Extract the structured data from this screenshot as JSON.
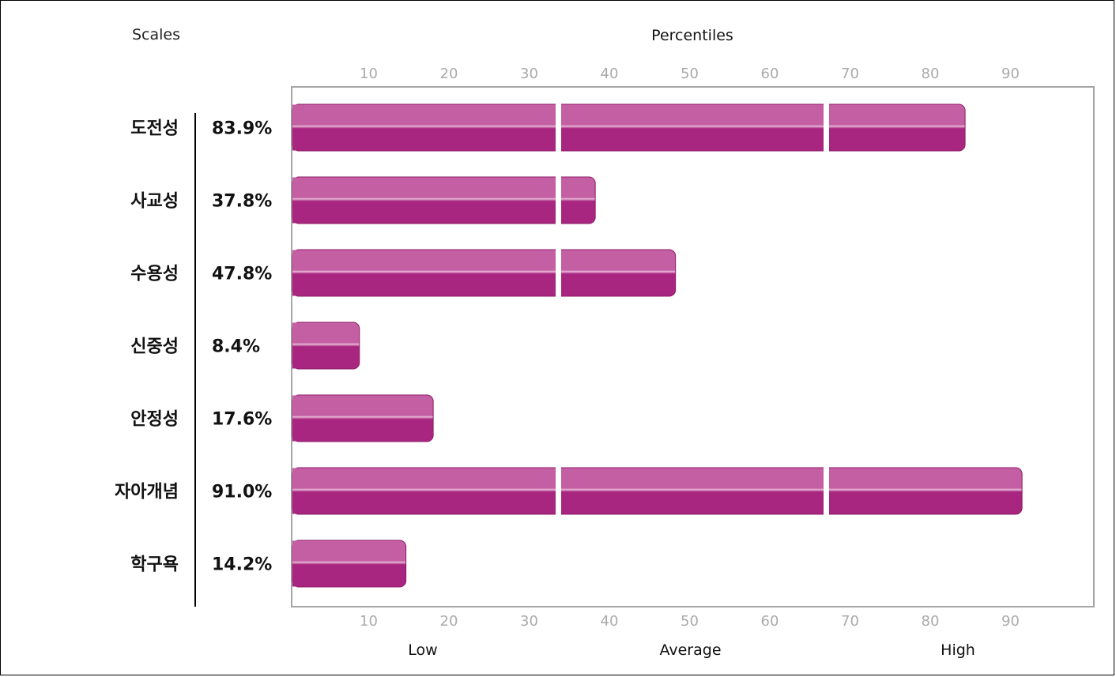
{
  "chart_data": {
    "type": "bar",
    "orientation": "horizontal",
    "scales_header": "Scales",
    "title": "Percentiles",
    "categories": [
      "도전성",
      "사교성",
      "수용성",
      "신중성",
      "안정성",
      "자아개념",
      "학구욕"
    ],
    "value_labels": [
      "83.9%",
      "37.8%",
      "47.8%",
      "8.4%",
      "17.6%",
      "91.0%",
      "14.2%"
    ],
    "values": [
      83.9,
      37.8,
      47.8,
      8.4,
      17.6,
      91.0,
      14.2
    ],
    "xlim": [
      0,
      100
    ],
    "ticks": [
      10,
      20,
      30,
      40,
      50,
      60,
      70,
      80,
      90
    ],
    "bands": [
      {
        "label": "Low",
        "from": 0,
        "to": 33.3
      },
      {
        "label": "Average",
        "from": 33.3,
        "to": 66.7
      },
      {
        "label": "High",
        "from": 66.7,
        "to": 100
      }
    ],
    "grid": false,
    "bar_color": "#a8267f",
    "bar_highlight": "#c45fa3",
    "frame_color": "#a6a6a6",
    "tick_color": "#aaaaaa"
  }
}
